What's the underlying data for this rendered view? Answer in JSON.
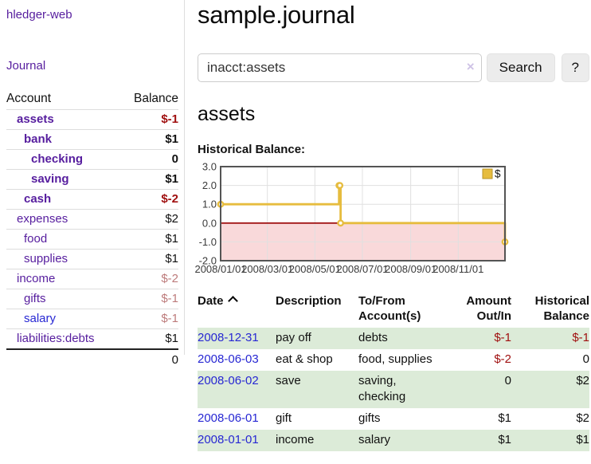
{
  "app": {
    "title": "hledger-web"
  },
  "sidebar": {
    "journal_link": "Journal",
    "accounts_table": {
      "account_header": "Account",
      "balance_header": "Balance",
      "rows": [
        {
          "name": "assets",
          "indent": 1,
          "bold": true,
          "link_color": "purple",
          "balance": "$-1",
          "balance_style": "neg-strong"
        },
        {
          "name": "bank",
          "indent": 2,
          "bold": true,
          "link_color": "purple",
          "balance": "$1",
          "balance_style": "pos"
        },
        {
          "name": "checking",
          "indent": 3,
          "bold": true,
          "link_color": "purple",
          "balance": "0",
          "balance_style": "pos"
        },
        {
          "name": "saving",
          "indent": 3,
          "bold": true,
          "link_color": "purple",
          "balance": "$1",
          "balance_style": "pos"
        },
        {
          "name": "cash",
          "indent": 2,
          "bold": true,
          "link_color": "purple",
          "balance": "$-2",
          "balance_style": "neg-strong"
        },
        {
          "name": "expenses",
          "indent": 1,
          "bold": false,
          "link_color": "purple",
          "balance": "$2",
          "balance_style": "pos"
        },
        {
          "name": "food",
          "indent": 2,
          "bold": false,
          "link_color": "purple",
          "balance": "$1",
          "balance_style": "pos"
        },
        {
          "name": "supplies",
          "indent": 2,
          "bold": false,
          "link_color": "purple",
          "balance": "$1",
          "balance_style": "pos"
        },
        {
          "name": "income",
          "indent": 1,
          "bold": false,
          "link_color": "purple",
          "balance": "$-2",
          "balance_style": "neg-muted"
        },
        {
          "name": "gifts",
          "indent": 2,
          "bold": false,
          "link_color": "purple",
          "balance": "$-1",
          "balance_style": "neg-muted"
        },
        {
          "name": "salary",
          "indent": 2,
          "bold": false,
          "link_color": "blue",
          "balance": "$-1",
          "balance_style": "neg-muted"
        },
        {
          "name": "liabilities:debts",
          "indent": 1,
          "bold": false,
          "link_color": "purple",
          "balance": "$1",
          "balance_style": "pos"
        }
      ],
      "total": "0"
    }
  },
  "header": {
    "title": "sample.journal"
  },
  "search": {
    "value": "inacct:assets",
    "clear_icon": "×",
    "search_label": "Search",
    "help_label": "?"
  },
  "account_page": {
    "heading": "assets",
    "chart_label": "Historical Balance:"
  },
  "chart_data": {
    "type": "line",
    "title": "Historical Balance",
    "step": true,
    "series": [
      {
        "name": "$",
        "color": "#e6bc3e",
        "points": [
          [
            "2008-01-01",
            1
          ],
          [
            "2008-06-01",
            2
          ],
          [
            "2008-06-02",
            2
          ],
          [
            "2008-06-03",
            0
          ],
          [
            "2008-12-31",
            -1
          ]
        ]
      }
    ],
    "xlim": [
      "2008-01-01",
      "2008-12-31"
    ],
    "ylim": [
      -2,
      3
    ],
    "x_ticks": [
      "2008/01/01",
      "2008/03/01",
      "2008/05/01",
      "2008/07/01",
      "2008/09/01",
      "2008/11/01"
    ],
    "y_ticks": [
      3.0,
      2.0,
      1.0,
      0.0,
      -1.0,
      -2.0
    ],
    "legend_position": "top-right",
    "legend_label": "$",
    "grid": true,
    "negative_region_color": "#f9d9da",
    "zero_line_color": "#990000",
    "border_color": "#545454",
    "grid_color": "#e0e0e0"
  },
  "register_table": {
    "headers": {
      "date": "Date",
      "sort": "ascending",
      "description": "Description",
      "accounts": "To/From Account(s)",
      "amount": "Amount Out/In",
      "balance": "Historical Balance"
    },
    "rows": [
      {
        "date": "2008-12-31",
        "description": "pay off",
        "accounts": "debts",
        "amount": "$-1",
        "amount_neg": true,
        "balance": "$-1",
        "balance_neg": true
      },
      {
        "date": "2008-06-03",
        "description": "eat & shop",
        "accounts": "food, supplies",
        "amount": "$-2",
        "amount_neg": true,
        "balance": "0",
        "balance_neg": false
      },
      {
        "date": "2008-06-02",
        "description": "save",
        "accounts": "saving, checking",
        "amount": "0",
        "amount_neg": false,
        "balance": "$2",
        "balance_neg": false
      },
      {
        "date": "2008-06-01",
        "description": "gift",
        "accounts": "gifts",
        "amount": "$1",
        "amount_neg": false,
        "balance": "$2",
        "balance_neg": false
      },
      {
        "date": "2008-01-01",
        "description": "income",
        "accounts": "salary",
        "amount": "$1",
        "amount_neg": false,
        "balance": "$1",
        "balance_neg": false
      }
    ]
  }
}
